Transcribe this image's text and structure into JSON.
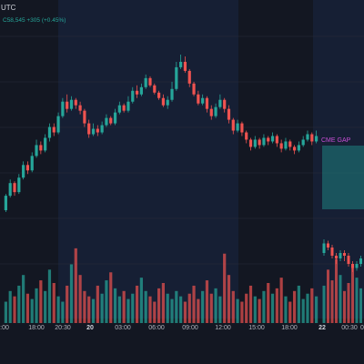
{
  "header": {
    "timezone": "UTC",
    "last_price": "C58,545",
    "change": "+305 (+0.45%)"
  },
  "annotation": {
    "label": "CME GAP"
  },
  "x_axis": [
    {
      "label": ":00",
      "bold": false
    },
    {
      "label": "18:00",
      "bold": false
    },
    {
      "label": "20:30",
      "bold": false
    },
    {
      "label": "20",
      "bold": true
    },
    {
      "label": "03:00",
      "bold": false
    },
    {
      "label": "06:00",
      "bold": false
    },
    {
      "label": "09:00",
      "bold": false
    },
    {
      "label": "12:00",
      "bold": false
    },
    {
      "label": "15:00",
      "bold": false
    },
    {
      "label": "18:00",
      "bold": false
    },
    {
      "label": "22",
      "bold": true
    },
    {
      "label": "00:30",
      "bold": false
    },
    {
      "label": "0",
      "bold": false
    }
  ],
  "colors": {
    "background": "#131722",
    "session_band": "#1a2744",
    "up": "#26a69a",
    "down": "#ef5350",
    "gap_fill": "#1f7f80",
    "gap_label": "#c94fd6",
    "axis_text": "#b2b5be"
  },
  "chart_data": {
    "type": "candlestick",
    "title": "",
    "xlabel": "",
    "ylabel": "",
    "ylim": [
      0,
      100
    ],
    "candles": [
      [
        22,
        30,
        21,
        31
      ],
      [
        30,
        37,
        29,
        39
      ],
      [
        37,
        32,
        30,
        38
      ],
      [
        32,
        40,
        31,
        42
      ],
      [
        40,
        47,
        39,
        49
      ],
      [
        47,
        44,
        42,
        49
      ],
      [
        44,
        52,
        43,
        54
      ],
      [
        52,
        58,
        51,
        61
      ],
      [
        58,
        55,
        53,
        60
      ],
      [
        55,
        62,
        54,
        64
      ],
      [
        62,
        68,
        60,
        70
      ],
      [
        68,
        65,
        63,
        70
      ],
      [
        65,
        74,
        64,
        76
      ],
      [
        74,
        82,
        73,
        84
      ],
      [
        82,
        78,
        76,
        86
      ],
      [
        78,
        83,
        77,
        85
      ],
      [
        83,
        80,
        78,
        84
      ],
      [
        80,
        77,
        75,
        82
      ],
      [
        77,
        70,
        68,
        78
      ],
      [
        70,
        64,
        62,
        72
      ],
      [
        64,
        67,
        63,
        70
      ],
      [
        67,
        65,
        63,
        69
      ],
      [
        65,
        69,
        64,
        71
      ],
      [
        69,
        73,
        68,
        75
      ],
      [
        73,
        70,
        69,
        74
      ],
      [
        70,
        76,
        69,
        78
      ],
      [
        76,
        80,
        75,
        82
      ],
      [
        80,
        77,
        76,
        81
      ],
      [
        77,
        82,
        76,
        85
      ],
      [
        82,
        88,
        81,
        90
      ],
      [
        88,
        86,
        84,
        91
      ],
      [
        86,
        90,
        85,
        92
      ],
      [
        90,
        95,
        89,
        97
      ],
      [
        95,
        91,
        90,
        96
      ],
      [
        91,
        87,
        86,
        92
      ],
      [
        87,
        84,
        83,
        88
      ],
      [
        84,
        80,
        79,
        86
      ],
      [
        80,
        83,
        78,
        85
      ],
      [
        83,
        89,
        82,
        93
      ],
      [
        89,
        101,
        88,
        104
      ],
      [
        101,
        104,
        100,
        108
      ],
      [
        104,
        99,
        98,
        107
      ],
      [
        99,
        92,
        90,
        100
      ],
      [
        92,
        86,
        85,
        93
      ],
      [
        86,
        81,
        80,
        88
      ],
      [
        81,
        84,
        80,
        86
      ],
      [
        84,
        78,
        76,
        85
      ],
      [
        78,
        74,
        72,
        80
      ],
      [
        74,
        79,
        73,
        81
      ],
      [
        79,
        83,
        78,
        86
      ],
      [
        83,
        78,
        76,
        84
      ],
      [
        78,
        72,
        70,
        80
      ],
      [
        72,
        66,
        64,
        73
      ],
      [
        66,
        70,
        65,
        72
      ],
      [
        70,
        65,
        63,
        71
      ],
      [
        65,
        61,
        59,
        66
      ],
      [
        61,
        57,
        55,
        62
      ],
      [
        57,
        61,
        56,
        63
      ],
      [
        61,
        58,
        56,
        62
      ],
      [
        58,
        62,
        57,
        64
      ],
      [
        62,
        60,
        58,
        63
      ],
      [
        60,
        63,
        59,
        65
      ],
      [
        63,
        59,
        57,
        64
      ],
      [
        59,
        56,
        54,
        61
      ],
      [
        56,
        60,
        55,
        62
      ],
      [
        60,
        57,
        55,
        61
      ],
      [
        57,
        55,
        53,
        58
      ],
      [
        55,
        58,
        54,
        60
      ],
      [
        58,
        61,
        57,
        63
      ],
      [
        61,
        64,
        60,
        66
      ],
      [
        64,
        60,
        58,
        65
      ],
      [
        60,
        63,
        59,
        66
      ]
    ],
    "gap_candles": [
      [
        48,
        55,
        46,
        58
      ],
      [
        55,
        52,
        50,
        57
      ],
      [
        52,
        46,
        44,
        54
      ],
      [
        46,
        44,
        40,
        48
      ],
      [
        44,
        48,
        42,
        50
      ],
      [
        48,
        46,
        42,
        50
      ],
      [
        46,
        40,
        38,
        48
      ],
      [
        40,
        37,
        34,
        42
      ],
      [
        37,
        40,
        35,
        42
      ],
      [
        40,
        44,
        38,
        46
      ]
    ],
    "volume": [
      8,
      12,
      10,
      14,
      18,
      11,
      9,
      13,
      16,
      12,
      20,
      15,
      10,
      8,
      14,
      22,
      28,
      18,
      12,
      10,
      9,
      14,
      11,
      16,
      19,
      13,
      10,
      12,
      9,
      11,
      14,
      17,
      12,
      10,
      8,
      13,
      15,
      11,
      9,
      12,
      10,
      8,
      11,
      14,
      9,
      12,
      16,
      11,
      13,
      10,
      26,
      18,
      12,
      9,
      8,
      11,
      14,
      10,
      9,
      12,
      15,
      11,
      13,
      17,
      10,
      8,
      12,
      14,
      9,
      11,
      13,
      10
    ],
    "gap_volume": [
      14,
      20,
      16,
      24,
      18,
      12,
      15,
      22,
      17,
      13
    ]
  }
}
